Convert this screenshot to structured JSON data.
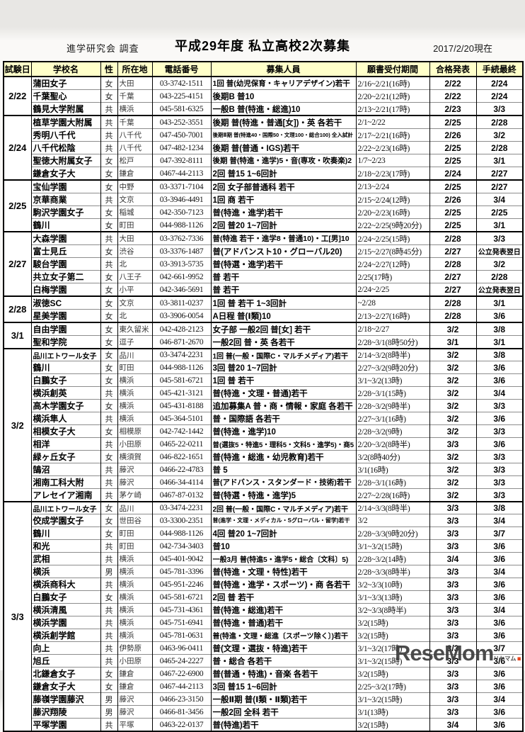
{
  "colors": {
    "header_bg": "#ffffc9",
    "table_border": "#000000",
    "watermark_gray": "#3e3e3e",
    "watermark_red": "#e8380d"
  },
  "page": {
    "credit": "進学研究会 調査",
    "title": "平成29年度 私立高校2次募集",
    "as_of": "2017/2/20現在",
    "watermark": {
      "text": "ReseMom",
      "suffix": "リセマム",
      "dot": "."
    }
  },
  "table": {
    "headers": [
      "試験日",
      "学校名",
      "性",
      "所在地",
      "電話番号",
      "募集人員",
      "願書受付期間",
      "合格発表",
      "手続最終"
    ],
    "groups": [
      {
        "date": "2/22",
        "rows": [
          {
            "school": "蒲田女子",
            "gender": "女",
            "loc": "大田",
            "tel": "03-3742-1511",
            "recruit": "1回 普(幼児保育・キャリアデザイン)若干",
            "period": "2/16~2/21(16時)",
            "announce": "2/22",
            "final": "2/24"
          },
          {
            "school": "千葉聖心",
            "gender": "女",
            "loc": "千葉",
            "tel": "043-225-4151",
            "recruit": "後期B 普10",
            "period": "2/20~2/21(12時)",
            "announce": "2/22",
            "final": "2/24"
          },
          {
            "school": "鶴見大学附属",
            "gender": "共",
            "loc": "横浜",
            "tel": "045-581-6325",
            "recruit": "一般B 普(特進・総進)10",
            "period": "2/13~2/21(17時)",
            "announce": "2/23",
            "final": "3/3"
          }
        ]
      },
      {
        "date": "2/24",
        "rows": [
          {
            "school": "植草学園大附属",
            "gender": "共",
            "loc": "千葉",
            "tel": "043-252-3551",
            "recruit": "後期 普(特進・普通[女])・英 各若干",
            "period": "2/1~2/22",
            "announce": "2/25",
            "final": "2/28"
          },
          {
            "school": "秀明八千代",
            "gender": "共",
            "loc": "八千代",
            "tel": "047-450-7001",
            "recruit": "後期Ⅱ期 普(特進40・国際50・文理100・総合100) 全入試計",
            "period": "2/17~2/21(16時)",
            "announce": "2/26",
            "final": "3/2"
          },
          {
            "school": "八千代松陰",
            "gender": "共",
            "loc": "八千代",
            "tel": "047-482-1234",
            "recruit": "後期 普(普通・IGS)若干",
            "period": "2/22~2/23(16時)",
            "announce": "2/25",
            "final": "2/28"
          },
          {
            "school": "聖徳大附属女子",
            "gender": "女",
            "loc": "松戸",
            "tel": "047-392-8111",
            "recruit": "後期 普(特進・進学)5・音(専攻・吹奏楽)2",
            "period": "1/7~2/23",
            "announce": "2/25",
            "final": "3/1"
          },
          {
            "school": "鎌倉女子大",
            "gender": "女",
            "loc": "鎌倉",
            "tel": "0467-44-2113",
            "recruit": "2回 普15 1~6回計",
            "period": "2/18~2/23(17時)",
            "announce": "2/24",
            "final": "2/27"
          }
        ]
      },
      {
        "date": "2/25",
        "rows": [
          {
            "school": "宝仙学園",
            "gender": "女",
            "loc": "中野",
            "tel": "03-3371-7104",
            "recruit": "2回 女子部普通科 若干",
            "period": "2/13~2/24",
            "announce": "2/25",
            "final": "2/27"
          },
          {
            "school": "京華商業",
            "gender": "共",
            "loc": "文京",
            "tel": "03-3946-4491",
            "recruit": "1回 商 若干",
            "period": "2/15~2/24(12時)",
            "announce": "2/26",
            "final": "3/4"
          },
          {
            "school": "駒沢学園女子",
            "gender": "女",
            "loc": "稲城",
            "tel": "042-350-7123",
            "recruit": "普(特進・進学)若干",
            "period": "2/20~2/23(16時)",
            "announce": "2/25",
            "final": "2/25"
          },
          {
            "school": "鶴川",
            "gender": "女",
            "loc": "町田",
            "tel": "044-988-1126",
            "recruit": "2回 普20 1~7回計",
            "period": "2/22~2/25(9時20分)",
            "announce": "2/25",
            "final": "3/1"
          }
        ]
      },
      {
        "date": "2/27",
        "rows": [
          {
            "school": "大森学園",
            "gender": "共",
            "loc": "大田",
            "tel": "03-3762-7336",
            "recruit": "普(特進 若干・進学8・普通10)・工[男]10",
            "period": "2/24~2/25(15時)",
            "announce": "2/28",
            "final": "3/3"
          },
          {
            "school": "富士見丘",
            "gender": "女",
            "loc": "渋谷",
            "tel": "03-3376-1487",
            "recruit": "普(アドバンスト10・グローバル20)",
            "period": "2/15~2/27(8時45分)",
            "announce": "2/27",
            "final": "公立発表翌日"
          },
          {
            "school": "駿台学園",
            "gender": "共",
            "loc": "北",
            "tel": "03-3913-5735",
            "recruit": "普(特選・進学)若干",
            "period": "2/24~2/27(12時)",
            "announce": "2/28",
            "final": "3/2"
          },
          {
            "school": "共立女子第二",
            "gender": "女",
            "loc": "八王子",
            "tel": "042-661-9952",
            "recruit": "普 若干",
            "period": "2/25(17時)",
            "announce": "2/27",
            "final": "2/28"
          },
          {
            "school": "白梅学園",
            "gender": "女",
            "loc": "小平",
            "tel": "042-346-5691",
            "recruit": "普 若干",
            "period": "2/24~2/25",
            "announce": "2/27",
            "final": "公立発表翌日"
          }
        ]
      },
      {
        "date": "2/28",
        "rows": [
          {
            "school": "淑徳SC",
            "gender": "女",
            "loc": "文京",
            "tel": "03-3811-0237",
            "recruit": "1回 普 若干 1~3回計",
            "period": "~2/28",
            "announce": "2/28",
            "final": "3/1"
          },
          {
            "school": "星美学園",
            "gender": "女",
            "loc": "北",
            "tel": "03-3906-0054",
            "recruit": "A日程 普(Ⅰ類)10",
            "period": "2/13~2/27(16時)",
            "announce": "2/28",
            "final": "3/6"
          }
        ]
      },
      {
        "date": "3/1",
        "rows": [
          {
            "school": "自由学園",
            "gender": "女",
            "loc": "東久留米",
            "tel": "042-428-2123",
            "recruit": "女子部 一般2回 普[女] 若干",
            "period": "2/18~2/27",
            "announce": "3/2",
            "final": "3/8"
          },
          {
            "school": "聖和学院",
            "gender": "女",
            "loc": "逗子",
            "tel": "046-871-2670",
            "recruit": "一般2回 普・英 各若干",
            "period": "2/28~3/1(8時50分)",
            "announce": "3/1",
            "final": "3/1"
          }
        ]
      },
      {
        "date": "3/2",
        "rows": [
          {
            "school": "品川エトワール女子",
            "gender": "女",
            "loc": "品川",
            "tel": "03-3474-2231",
            "recruit": "1回 普(一般・国際C・マルチメディア)若干",
            "period": "2/14~3/2(8時半)",
            "announce": "3/2",
            "final": "3/8"
          },
          {
            "school": "鶴川",
            "gender": "女",
            "loc": "町田",
            "tel": "044-988-1126",
            "recruit": "3回 普20 1~7回計",
            "period": "2/27~3/2(9時20分)",
            "announce": "3/2",
            "final": "3/6"
          },
          {
            "school": "白鵬女子",
            "gender": "女",
            "loc": "横浜",
            "tel": "045-581-6721",
            "recruit": "1回 普 若干",
            "period": "3/1~3/2(13時)",
            "announce": "3/2",
            "final": "3/6"
          },
          {
            "school": "横浜創英",
            "gender": "共",
            "loc": "横浜",
            "tel": "045-421-3121",
            "recruit": "普(特進・文理・普通)若干",
            "period": "2/28~3/1(15時)",
            "announce": "3/2",
            "final": "3/4"
          },
          {
            "school": "高木学園女子",
            "gender": "女",
            "loc": "横浜",
            "tel": "045-431-8188",
            "recruit": "追加募集A 普・商・情報・家庭 各若干",
            "period": "2/28~3/2(9時半)",
            "announce": "3/2",
            "final": "3/3"
          },
          {
            "school": "横浜隼人",
            "gender": "共",
            "loc": "横浜",
            "tel": "045-364-5101",
            "recruit": "普・国際語 各若干",
            "period": "2/27~3/1(16時)",
            "announce": "3/2",
            "final": "3/6"
          },
          {
            "school": "相模女子大",
            "gender": "女",
            "loc": "相模原",
            "tel": "042-742-1442",
            "recruit": "普(特進・進学)10",
            "period": "2/28~3/2(9時)",
            "announce": "3/2",
            "final": "3/3"
          },
          {
            "school": "相洋",
            "gender": "共",
            "loc": "小田原",
            "tel": "0465-22-0211",
            "recruit": "普(選抜5・特進5・理科5・文科5・進学5)・商5",
            "period": "2/20~3/2(8時半)",
            "announce": "3/3",
            "final": "3/6"
          },
          {
            "school": "緑ヶ丘女子",
            "gender": "女",
            "loc": "横須賀",
            "tel": "046-822-1651",
            "recruit": "普(特進・総進・幼児教育)若干",
            "period": "3/2(8時40分)",
            "announce": "3/2",
            "final": "3/3"
          },
          {
            "school": "鵠沼",
            "gender": "共",
            "loc": "藤沢",
            "tel": "0466-22-4783",
            "recruit": "普 5",
            "period": "3/1(16時)",
            "announce": "3/2",
            "final": "3/3"
          },
          {
            "school": "湘南工科大附",
            "gender": "共",
            "loc": "藤沢",
            "tel": "0466-34-4114",
            "recruit": "普(アドバンス・スタンダード・技術)若干",
            "period": "2/28~3/1(16時)",
            "announce": "3/2",
            "final": "3/3"
          },
          {
            "school": "アレセイア湘南",
            "gender": "共",
            "loc": "茅ケ崎",
            "tel": "0467-87-0132",
            "recruit": "普(特選・特進・進学)5",
            "period": "2/27~2/28(16時)",
            "announce": "3/2",
            "final": "3/3"
          }
        ]
      },
      {
        "date": "3/3",
        "rows": [
          {
            "school": "品川エトワール女子",
            "gender": "女",
            "loc": "品川",
            "tel": "03-3474-2231",
            "recruit": "2回 普(一般・国際C・マルチメディア)若干",
            "period": "2/14~3/3(8時半)",
            "announce": "3/3",
            "final": "3/8"
          },
          {
            "school": "佼成学園女子",
            "gender": "女",
            "loc": "世田谷",
            "tel": "03-3300-2351",
            "recruit": "普(進学・文理・メディカル・Sグローバル・留学)若干",
            "period": "3/2",
            "announce": "3/3",
            "final": "3/4"
          },
          {
            "school": "鶴川",
            "gender": "女",
            "loc": "町田",
            "tel": "044-988-1126",
            "recruit": "4回 普20 1~7回計",
            "period": "2/28~3/3(9時20分)",
            "announce": "3/3",
            "final": "3/7"
          },
          {
            "school": "和光",
            "gender": "共",
            "loc": "町田",
            "tel": "042-734-3403",
            "recruit": "普10",
            "period": "3/1~3/2(15時)",
            "announce": "3/3",
            "final": "3/6"
          },
          {
            "school": "武相",
            "gender": "共",
            "loc": "横浜",
            "tel": "045-401-9042",
            "recruit": "一般3月 普(特進5・進学5・総合〔文科〕5)",
            "period": "2/28~3/2(14時)",
            "announce": "3/4",
            "final": "3/6"
          },
          {
            "school": "横浜",
            "gender": "男",
            "loc": "横浜",
            "tel": "045-781-3396",
            "recruit": "普(特進・文理・特性)若干",
            "period": "2/28~3/3(8時半)",
            "announce": "3/3",
            "final": "3/4"
          },
          {
            "school": "横浜商科大",
            "gender": "共",
            "loc": "横浜",
            "tel": "045-951-2246",
            "recruit": "普(特進・進学・スポーツ)・商 各若干",
            "period": "3/2~3/3(10時)",
            "announce": "3/3",
            "final": "3/6"
          },
          {
            "school": "白鵬女子",
            "gender": "女",
            "loc": "横浜",
            "tel": "045-581-6721",
            "recruit": "2回 普 若干",
            "period": "3/1~3/3(13時)",
            "announce": "3/3",
            "final": "3/6"
          },
          {
            "school": "横浜清風",
            "gender": "共",
            "loc": "横浜",
            "tel": "045-731-4361",
            "recruit": "普(特進・総進)若干",
            "period": "3/2~3/3(8時半)",
            "announce": "3/3",
            "final": "3/4"
          },
          {
            "school": "横浜学園",
            "gender": "共",
            "loc": "横浜",
            "tel": "045-751-6941",
            "recruit": "普(特進・普通)若干",
            "period": "3/2(15時)",
            "announce": "3/3",
            "final": "3/6"
          },
          {
            "school": "横浜創学館",
            "gender": "共",
            "loc": "横浜",
            "tel": "045-781-0631",
            "recruit": "普(特進・文理・総進〔スポーツ除く〕)若干",
            "period": "3/2(15時)",
            "announce": "3/3",
            "final": "3/6"
          },
          {
            "school": "向上",
            "gender": "共",
            "loc": "伊勢原",
            "tel": "0463-96-0411",
            "recruit": "普(文理・選抜・特進)若干",
            "period": "3/1~3/2(17時)",
            "announce": "3/3",
            "final": "3/7"
          },
          {
            "school": "旭丘",
            "gender": "共",
            "loc": "小田原",
            "tel": "0465-24-2227",
            "recruit": "普・総合 各若干",
            "period": "3/1~3/2(15時)",
            "announce": "3/3",
            "final": "3/6"
          },
          {
            "school": "北鎌倉女子",
            "gender": "女",
            "loc": "鎌倉",
            "tel": "0467-22-6900",
            "recruit": "普(普通・特進)・音楽 各若干",
            "period": "3/2(15時)",
            "announce": "3/3",
            "final": "3/6"
          },
          {
            "school": "鎌倉女子大",
            "gender": "女",
            "loc": "鎌倉",
            "tel": "0467-44-2113",
            "recruit": "3回 普15 1~6回計",
            "period": "2/25~3/2(17時)",
            "announce": "3/3",
            "final": "3/6"
          },
          {
            "school": "藤嶺学園藤沢",
            "gender": "男",
            "loc": "藤沢",
            "tel": "0466-23-3150",
            "recruit": "一般Ⅱ期 普(Ⅰ類・Ⅱ類)若干",
            "period": "3/1~3/2(15時)",
            "announce": "3/3",
            "final": "3/4"
          },
          {
            "school": "藤沢翔陵",
            "gender": "男",
            "loc": "藤沢",
            "tel": "0466-81-3456",
            "recruit": "一般2回 全科 若干",
            "period": "3/1(13時)",
            "announce": "3/3",
            "final": "3/6"
          },
          {
            "school": "平塚学園",
            "gender": "共",
            "loc": "平塚",
            "tel": "0463-22-0137",
            "recruit": "普(特進)若干",
            "period": "3/2(15時)",
            "announce": "3/4",
            "final": "3/6"
          }
        ]
      }
    ]
  }
}
